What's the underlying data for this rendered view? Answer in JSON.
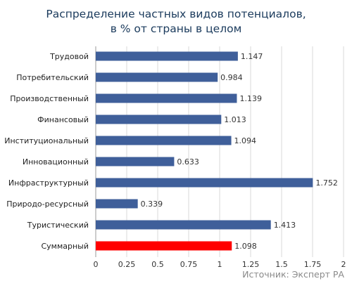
{
  "chart_data": {
    "type": "bar",
    "orientation": "horizontal",
    "title": [
      "Распределение частных видов потенциалов,",
      "в % от страны в целом"
    ],
    "categories": [
      "Трудовой",
      "Потребительский",
      "Производственный",
      "Финансовый",
      "Институциональный",
      "Инновационный",
      "Инфраструктурный",
      "Природо-ресурсный",
      "Туристический",
      "Суммарный"
    ],
    "values": [
      1.147,
      0.984,
      1.139,
      1.013,
      1.094,
      0.633,
      1.752,
      0.339,
      1.413,
      1.098
    ],
    "value_labels": [
      "1.147",
      "0.984",
      "1.139",
      "1.013",
      "1.094",
      "0.633",
      "1.752",
      "0.339",
      "1.413",
      "1.098"
    ],
    "xlim": [
      0,
      2
    ],
    "xticks": [
      "0",
      "0.25",
      "0.5",
      "0.75",
      "1",
      "1.25",
      "1.5",
      "1.75",
      "2"
    ],
    "grid": true,
    "bar_color": "#3f5f9a",
    "highlight_color": "#ff0000",
    "highlight_category": "Суммарный",
    "source": "Источник: Эксперт РА"
  }
}
